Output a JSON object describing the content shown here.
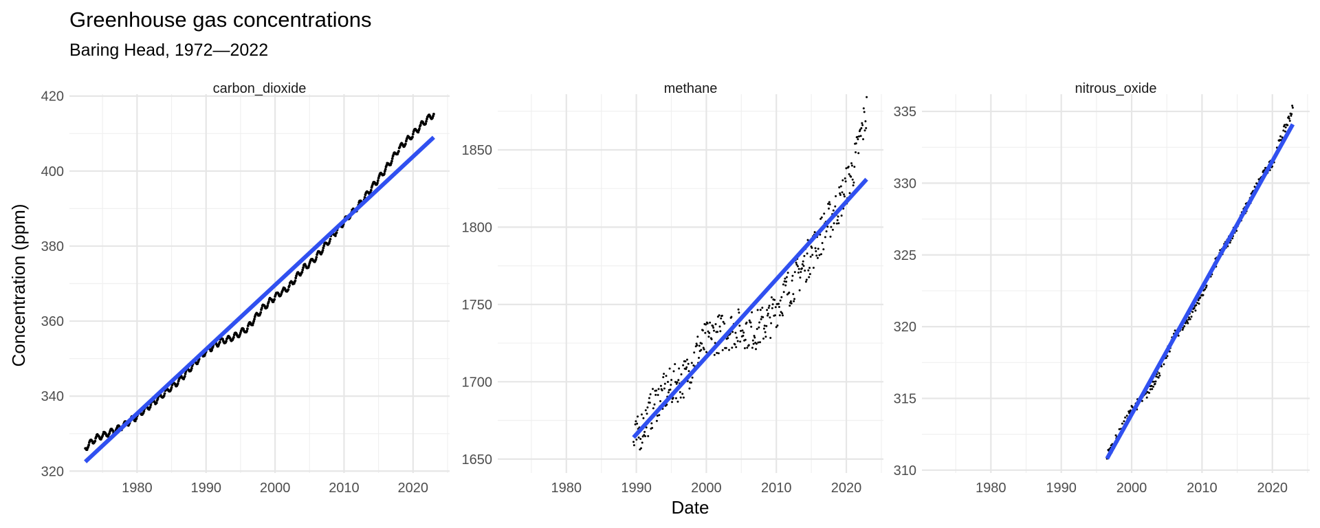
{
  "chart_data": {
    "type": "scatter",
    "title": "Greenhouse gas concentrations",
    "subtitle": "Baring Head, 1972—2022",
    "xlabel": "Date",
    "ylabel": "Concentration (ppm)",
    "grid": true,
    "legend": "none",
    "panels": [
      {
        "name": "carbon_dioxide",
        "xlim": [
          1970.2,
          2025.3
        ],
        "ylim": [
          319.5,
          420.5
        ],
        "yticks": [
          320,
          340,
          360,
          380,
          400,
          420
        ],
        "xticks": [
          1980,
          1990,
          2000,
          2010,
          2020
        ],
        "trend": {
          "x": [
            1972.5,
            2023.0
          ],
          "y": [
            322.5,
            409.0
          ]
        },
        "x_range": [
          1972.5,
          2023.0
        ],
        "points": [
          [
            1972.5,
            326.2
          ],
          [
            1974,
            328.7
          ],
          [
            1976,
            330.2
          ],
          [
            1978,
            332.1
          ],
          [
            1980,
            334.6
          ],
          [
            1982,
            337.7
          ],
          [
            1984,
            340.8
          ],
          [
            1986,
            343.9
          ],
          [
            1988,
            348.0
          ],
          [
            1990,
            352.0
          ],
          [
            1992,
            354.5
          ],
          [
            1994,
            355.7
          ],
          [
            1996,
            358.0
          ],
          [
            1998,
            363.0
          ],
          [
            2000,
            366.5
          ],
          [
            2002,
            369.0
          ],
          [
            2004,
            373.8
          ],
          [
            2006,
            377.0
          ],
          [
            2008,
            382.0
          ],
          [
            2010,
            386.5
          ],
          [
            2012,
            390.5
          ],
          [
            2014,
            395.5
          ],
          [
            2016,
            400.5
          ],
          [
            2018,
            406.0
          ],
          [
            2020,
            409.8
          ],
          [
            2022,
            413.8
          ],
          [
            2023.0,
            415.2
          ]
        ],
        "wiggle": 0.8,
        "density": 12
      },
      {
        "name": "methane",
        "xlim": [
          1970.2,
          2025.3
        ],
        "ylim": [
          1641,
          1886
        ],
        "yticks": [
          1650,
          1700,
          1750,
          1800,
          1850
        ],
        "xticks": [
          1980,
          1990,
          2000,
          2010,
          2020
        ],
        "trend": {
          "x": [
            1989.6,
            2022.9
          ],
          "y": [
            1664,
            1831
          ]
        },
        "x_range": [
          1989.6,
          2022.9
        ],
        "points": [
          [
            1989.6,
            1660
          ],
          [
            1991,
            1672
          ],
          [
            1993,
            1688
          ],
          [
            1995,
            1697
          ],
          [
            1997,
            1703
          ],
          [
            1999,
            1722
          ],
          [
            2001,
            1730
          ],
          [
            2003,
            1733
          ],
          [
            2005,
            1735
          ],
          [
            2007,
            1733
          ],
          [
            2009,
            1740
          ],
          [
            2011,
            1756
          ],
          [
            2013,
            1768
          ],
          [
            2015,
            1783
          ],
          [
            2017,
            1800
          ],
          [
            2019,
            1815
          ],
          [
            2021,
            1838
          ],
          [
            2022.9,
            1875
          ]
        ],
        "spread": 13,
        "density": 12
      },
      {
        "name": "nitrous_oxide",
        "xlim": [
          1970.2,
          2025.3
        ],
        "ylim": [
          309.8,
          336.2
        ],
        "yticks": [
          310,
          315,
          320,
          325,
          330,
          335
        ],
        "xticks": [
          1980,
          1990,
          2000,
          2010,
          2020
        ],
        "trend": {
          "x": [
            1996.5,
            2022.9
          ],
          "y": [
            310.8,
            334.1
          ]
        },
        "x_range": [
          1996.5,
          2022.9
        ],
        "points": [
          [
            1996.5,
            311.0
          ],
          [
            1998,
            312.3
          ],
          [
            2000,
            314.2
          ],
          [
            2002,
            315.2
          ],
          [
            2004,
            316.9
          ],
          [
            2006,
            319.3
          ],
          [
            2008,
            320.5
          ],
          [
            2010,
            322.3
          ],
          [
            2012,
            324.5
          ],
          [
            2014,
            326.2
          ],
          [
            2016,
            328.0
          ],
          [
            2018,
            330.0
          ],
          [
            2020,
            331.5
          ],
          [
            2022.9,
            335.2
          ]
        ],
        "spread": 0.35,
        "density": 12
      }
    ]
  }
}
